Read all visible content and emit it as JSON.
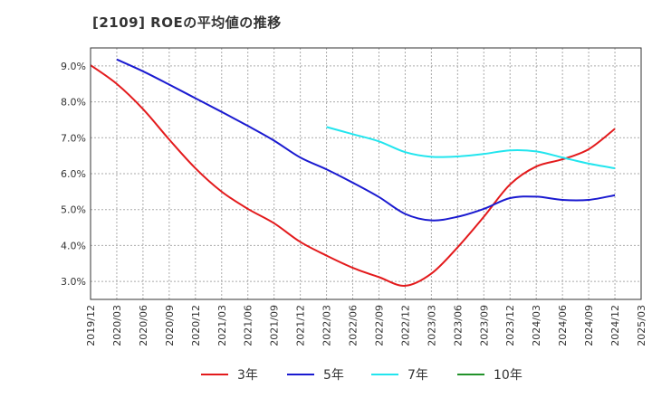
{
  "chart_data": {
    "type": "line",
    "title": "[2109]  ROEの平均値の推移",
    "xlabel": "",
    "ylabel": "",
    "x": [
      "2019/12",
      "2020/03",
      "2020/06",
      "2020/09",
      "2020/12",
      "2021/03",
      "2021/06",
      "2021/09",
      "2021/12",
      "2022/03",
      "2022/06",
      "2022/09",
      "2022/12",
      "2023/03",
      "2023/06",
      "2023/09",
      "2023/12",
      "2024/03",
      "2024/06",
      "2024/09",
      "2024/12",
      "2025/03"
    ],
    "ylim": [
      2.5,
      9.5
    ],
    "yticks": [
      3.0,
      4.0,
      5.0,
      6.0,
      7.0,
      8.0,
      9.0
    ],
    "ytick_labels": [
      "3.0%",
      "4.0%",
      "5.0%",
      "6.0%",
      "7.0%",
      "8.0%",
      "9.0%"
    ],
    "grid": true,
    "legend_position": "bottom",
    "series": [
      {
        "name": "3年",
        "color": "#e31a1c",
        "values": [
          9.02,
          8.5,
          7.8,
          6.95,
          6.15,
          5.5,
          5.02,
          4.62,
          4.1,
          3.72,
          3.38,
          3.12,
          2.88,
          3.22,
          3.95,
          4.8,
          5.7,
          6.2,
          6.4,
          6.68,
          7.25,
          null
        ]
      },
      {
        "name": "5年",
        "color": "#1a1ad0",
        "values": [
          null,
          9.18,
          8.85,
          8.48,
          8.1,
          7.72,
          7.33,
          6.92,
          6.45,
          6.12,
          5.75,
          5.35,
          4.88,
          4.7,
          4.8,
          5.02,
          5.32,
          5.36,
          5.27,
          5.27,
          5.4,
          null
        ]
      },
      {
        "name": "7年",
        "color": "#22e5ee",
        "values": [
          null,
          null,
          null,
          null,
          null,
          null,
          null,
          null,
          null,
          7.3,
          7.1,
          6.9,
          6.6,
          6.47,
          6.48,
          6.55,
          6.65,
          6.62,
          6.45,
          6.28,
          6.15,
          null
        ]
      },
      {
        "name": "10年",
        "color": "#22922a",
        "values": [
          null,
          null,
          null,
          null,
          null,
          null,
          null,
          null,
          null,
          null,
          null,
          null,
          null,
          null,
          null,
          null,
          null,
          null,
          null,
          null,
          null,
          null
        ]
      }
    ]
  }
}
